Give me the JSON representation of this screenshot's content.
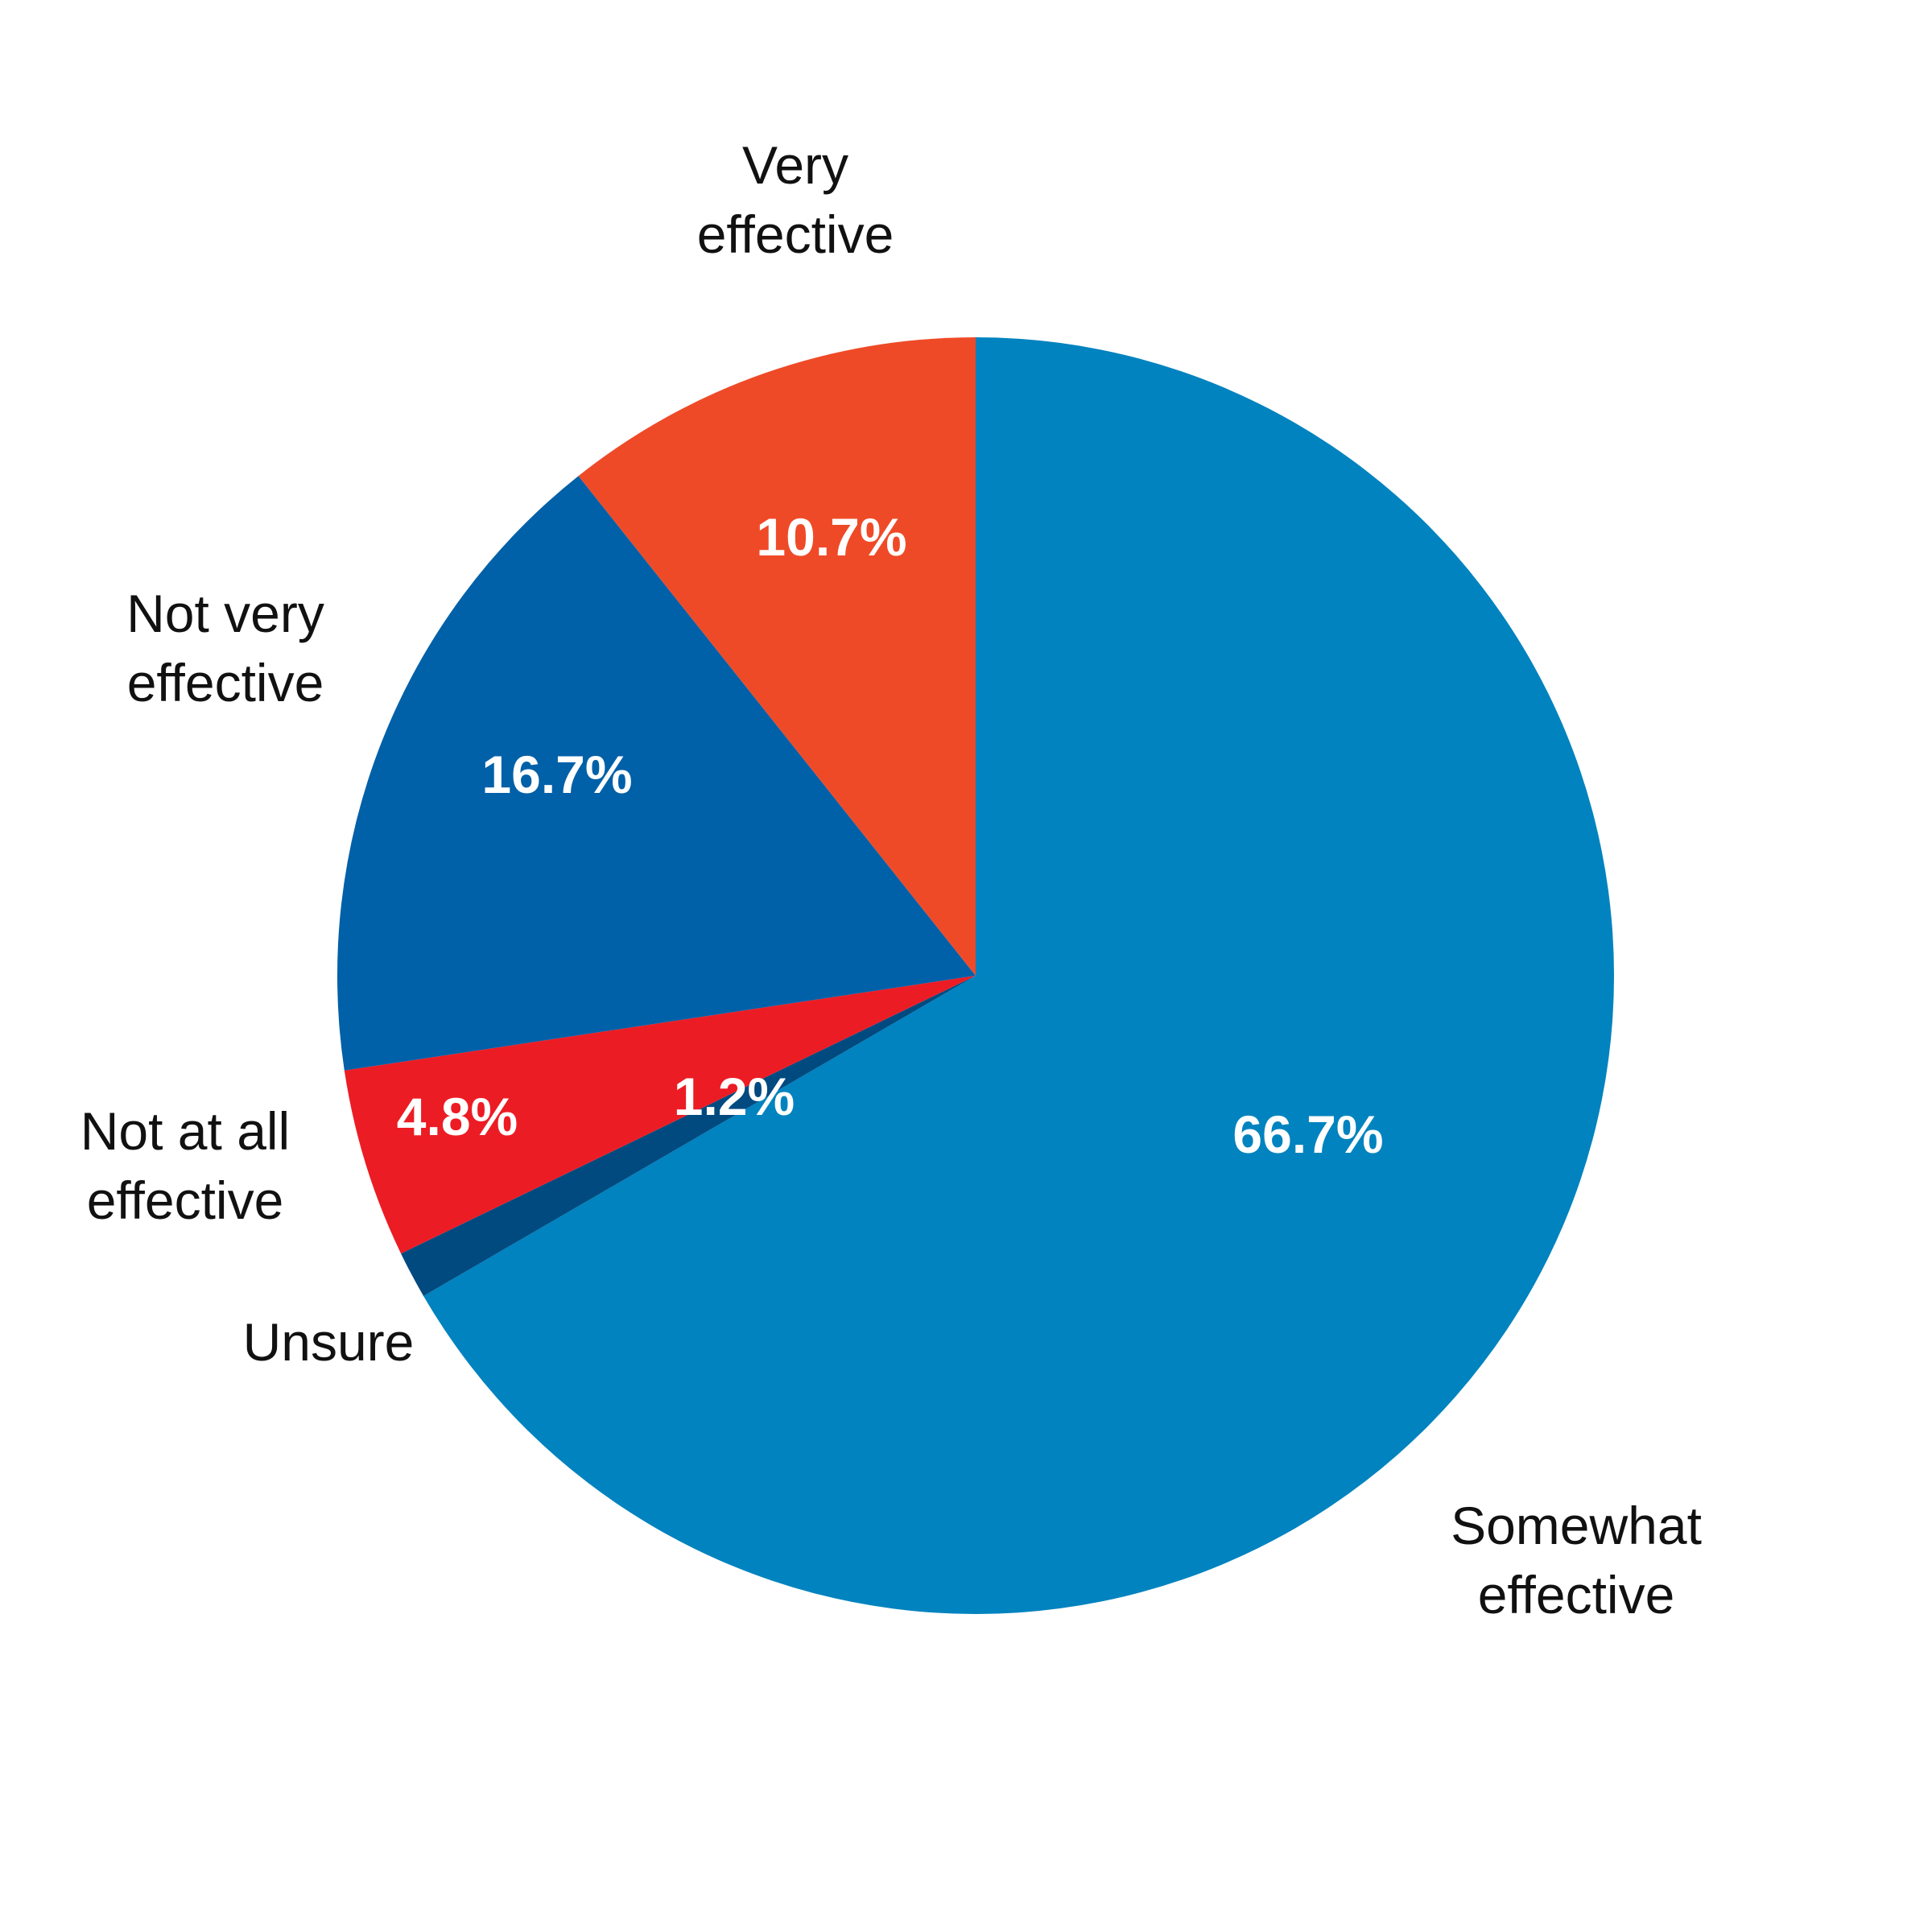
{
  "chart_data": {
    "type": "pie",
    "start_angle_deg": 0,
    "direction": "clockwise",
    "slices": [
      {
        "label": "Somewhat effective",
        "label_lines": [
          "Somewhat",
          "effective"
        ],
        "value": 66.7,
        "value_label": "66.7%",
        "color": "#0083BF"
      },
      {
        "label": "Unsure",
        "label_lines": [
          "Unsure"
        ],
        "value": 1.2,
        "value_label": "1.2%",
        "color": "#004A80"
      },
      {
        "label": "Not at all effective",
        "label_lines": [
          "Not at all",
          "effective"
        ],
        "value": 4.8,
        "value_label": "4.8%",
        "color": "#EC1C24"
      },
      {
        "label": "Not very effective",
        "label_lines": [
          "Not very",
          "effective"
        ],
        "value": 16.7,
        "value_label": "16.7%",
        "color": "#0060A8"
      },
      {
        "label": "Very effective",
        "label_lines": [
          "Very",
          "effective"
        ],
        "value": 10.7,
        "value_label": "10.7%",
        "color": "#EF4A27"
      }
    ]
  }
}
